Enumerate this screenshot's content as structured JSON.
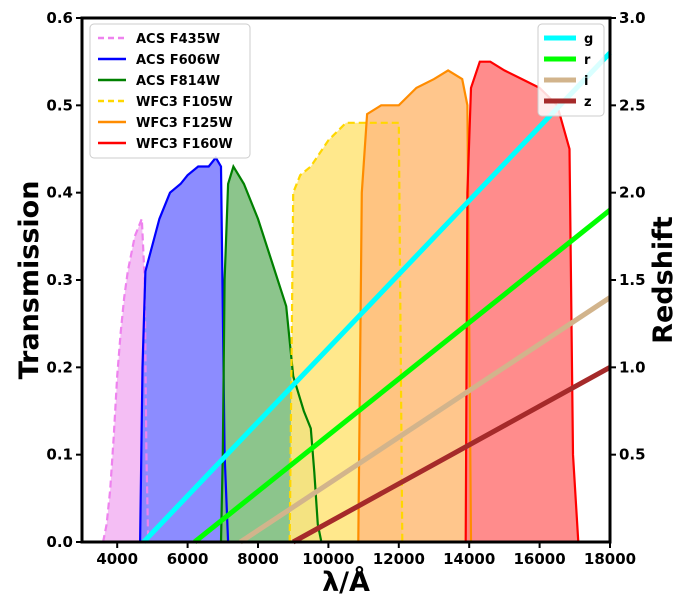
{
  "chart_data": {
    "type": "area",
    "xlabel": "λ/Å",
    "ylabel": "Transmission",
    "y2label": "Redshift",
    "xlim": [
      3000,
      18000
    ],
    "ylim": [
      0,
      0.6
    ],
    "y2lim": [
      0,
      3.0
    ],
    "xticks": [
      4000,
      6000,
      8000,
      10000,
      12000,
      14000,
      16000,
      18000
    ],
    "yticks": [
      0.0,
      0.1,
      0.2,
      0.3,
      0.4,
      0.5,
      0.6
    ],
    "y2ticks": [
      0.5,
      1.0,
      1.5,
      2.0,
      2.5,
      3.0
    ],
    "grid": false,
    "legend_left_placement": "top-left",
    "legend_right_placement": "top-right",
    "filters": [
      {
        "name": "ACS F435W",
        "color": "#ee82ee",
        "fill": "#f3b7f3",
        "dashed": true,
        "points": [
          [
            3600,
            0
          ],
          [
            3700,
            0.02
          ],
          [
            3800,
            0.06
          ],
          [
            3900,
            0.12
          ],
          [
            4000,
            0.19
          ],
          [
            4100,
            0.24
          ],
          [
            4200,
            0.28
          ],
          [
            4300,
            0.31
          ],
          [
            4400,
            0.33
          ],
          [
            4500,
            0.35
          ],
          [
            4600,
            0.36
          ],
          [
            4700,
            0.37
          ],
          [
            4780,
            0.3
          ],
          [
            4830,
            0.1
          ],
          [
            4880,
            0
          ]
        ]
      },
      {
        "name": "ACS F606W",
        "color": "#0000ff",
        "fill": "#7f7fff",
        "dashed": false,
        "points": [
          [
            4650,
            0
          ],
          [
            4720,
            0.2
          ],
          [
            4800,
            0.31
          ],
          [
            5000,
            0.34
          ],
          [
            5200,
            0.37
          ],
          [
            5500,
            0.4
          ],
          [
            5800,
            0.41
          ],
          [
            6000,
            0.42
          ],
          [
            6300,
            0.43
          ],
          [
            6600,
            0.43
          ],
          [
            6800,
            0.44
          ],
          [
            6950,
            0.43
          ],
          [
            7050,
            0.1
          ],
          [
            7150,
            0
          ]
        ]
      },
      {
        "name": "ACS F814W",
        "color": "#008000",
        "fill": "#7fbf7f",
        "dashed": false,
        "points": [
          [
            6950,
            0
          ],
          [
            7000,
            0.1
          ],
          [
            7050,
            0.3
          ],
          [
            7150,
            0.41
          ],
          [
            7300,
            0.43
          ],
          [
            7600,
            0.41
          ],
          [
            8000,
            0.37
          ],
          [
            8400,
            0.32
          ],
          [
            8800,
            0.27
          ],
          [
            9000,
            0.19
          ],
          [
            9300,
            0.15
          ],
          [
            9500,
            0.13
          ],
          [
            9600,
            0.08
          ],
          [
            9700,
            0.02
          ],
          [
            9800,
            0
          ]
        ]
      },
      {
        "name": "WFC3 F105W",
        "color": "#ffd700",
        "fill": "#ffe57f",
        "dashed": true,
        "points": [
          [
            8900,
            0
          ],
          [
            9000,
            0.4
          ],
          [
            9200,
            0.42
          ],
          [
            9500,
            0.43
          ],
          [
            10000,
            0.46
          ],
          [
            10500,
            0.48
          ],
          [
            11000,
            0.48
          ],
          [
            11500,
            0.48
          ],
          [
            12000,
            0.48
          ],
          [
            12100,
            0
          ]
        ]
      },
      {
        "name": "WFC3 F125W",
        "color": "#ff8c00",
        "fill": "#ffc07f",
        "dashed": false,
        "points": [
          [
            10850,
            0
          ],
          [
            10950,
            0.4
          ],
          [
            11100,
            0.49
          ],
          [
            11500,
            0.5
          ],
          [
            12000,
            0.5
          ],
          [
            12500,
            0.52
          ],
          [
            13000,
            0.53
          ],
          [
            13400,
            0.54
          ],
          [
            13800,
            0.53
          ],
          [
            13950,
            0.5
          ],
          [
            14050,
            0
          ]
        ]
      },
      {
        "name": "WFC3 F160W",
        "color": "#ff0000",
        "fill": "#ff7f7f",
        "dashed": false,
        "points": [
          [
            13900,
            0
          ],
          [
            13950,
            0.4
          ],
          [
            14050,
            0.52
          ],
          [
            14300,
            0.55
          ],
          [
            14600,
            0.55
          ],
          [
            15000,
            0.54
          ],
          [
            15500,
            0.53
          ],
          [
            16000,
            0.52
          ],
          [
            16500,
            0.5
          ],
          [
            16850,
            0.45
          ],
          [
            16950,
            0.1
          ],
          [
            17100,
            0
          ]
        ]
      }
    ],
    "redshift_lines": [
      {
        "name": "g",
        "color": "#00ffff",
        "x": [
          4750,
          18000
        ],
        "z": [
          0.0,
          2.8
        ]
      },
      {
        "name": "r",
        "color": "#00ff00",
        "x": [
          6200,
          18000
        ],
        "z": [
          0.0,
          1.9
        ]
      },
      {
        "name": "i",
        "color": "#d2b48c",
        "x": [
          7500,
          18000
        ],
        "z": [
          0.0,
          1.4
        ]
      },
      {
        "name": "z",
        "color": "#a52a2a",
        "x": [
          9000,
          18000
        ],
        "z": [
          0.0,
          1.0
        ]
      }
    ]
  }
}
